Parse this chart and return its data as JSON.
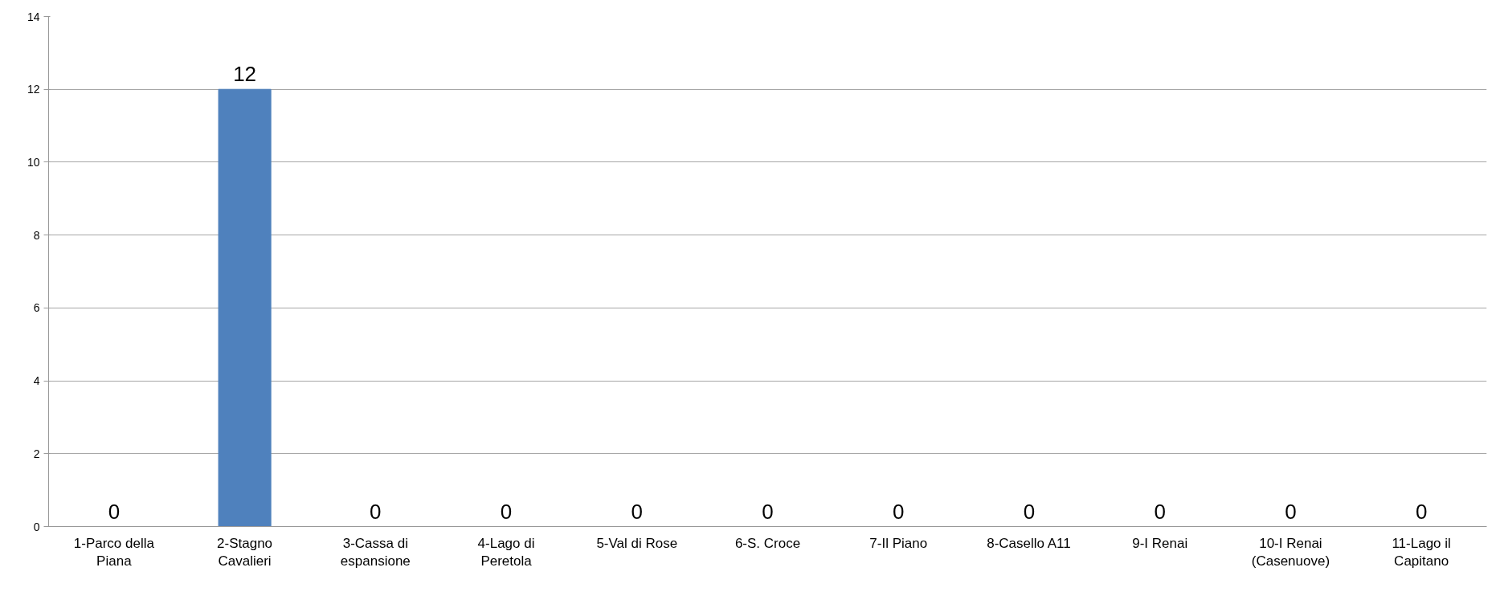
{
  "chart_data": {
    "type": "bar",
    "categories": [
      "1-Parco della Piana",
      "2-Stagno Cavalieri",
      "3-Cassa di espansione",
      "4-Lago di Peretola",
      "5-Val di Rose",
      "6-S. Croce",
      "7-Il Piano",
      "8-Casello A11",
      "9-I Renai",
      "10-I Renai (Casenuove)",
      "11-Lago il Capitano"
    ],
    "values": [
      0,
      12,
      0,
      0,
      0,
      0,
      0,
      0,
      0,
      0,
      0
    ],
    "color": "#4f81bd",
    "ylim": [
      0,
      14
    ],
    "yticks": [
      0,
      2,
      4,
      6,
      8,
      10,
      12,
      14
    ],
    "grid": "y",
    "data_labels": true
  }
}
